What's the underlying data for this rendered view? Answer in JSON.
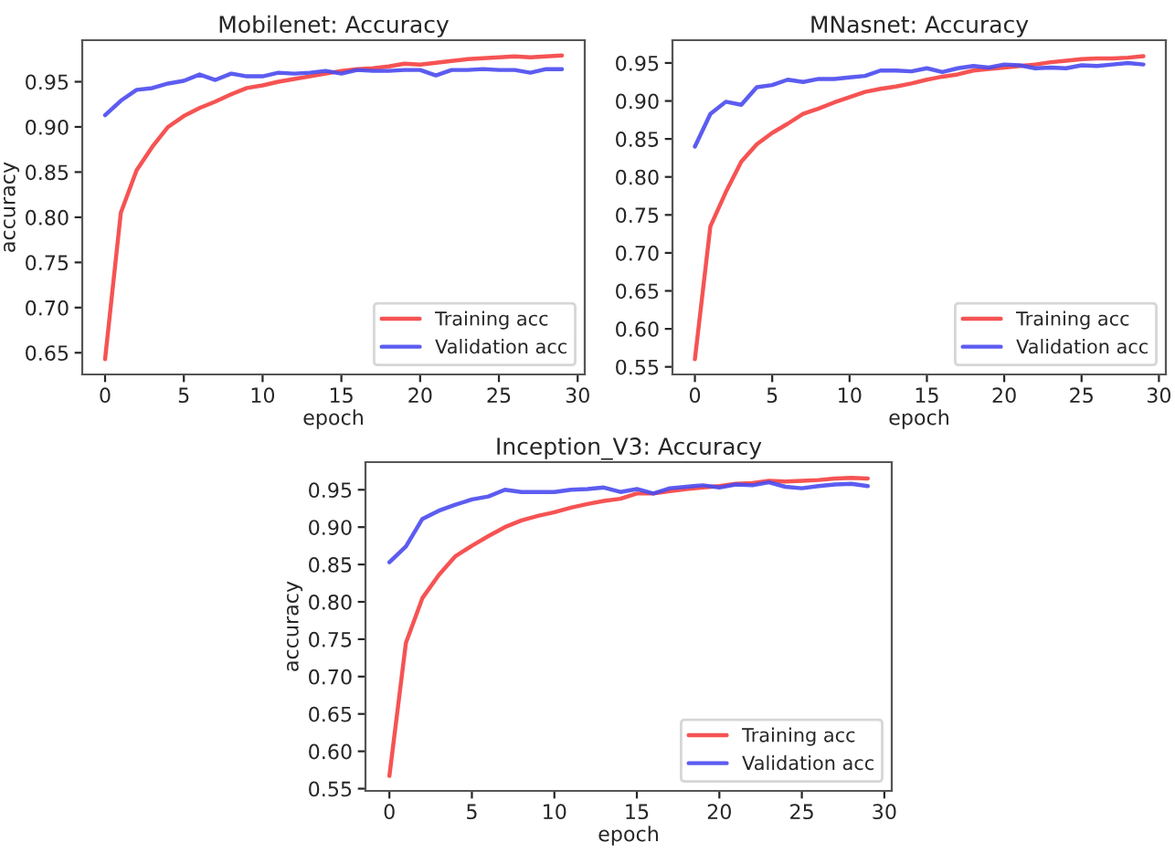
{
  "chart_data": [
    {
      "type": "line",
      "title": "Mobilenet: Accuracy",
      "xlabel": "epoch",
      "ylabel": "accuracy",
      "x": [
        0,
        1,
        2,
        3,
        4,
        5,
        6,
        7,
        8,
        9,
        10,
        11,
        12,
        13,
        14,
        15,
        16,
        17,
        18,
        19,
        20,
        21,
        22,
        23,
        24,
        25,
        26,
        27,
        28,
        29
      ],
      "xlim": [
        -1.45,
        30.45
      ],
      "xticks": [
        0,
        5,
        10,
        15,
        20,
        25,
        30
      ],
      "ylim": [
        0.626,
        0.996
      ],
      "yticks": [
        {
          "value": 0.65,
          "label": "0.65"
        },
        {
          "value": 0.7,
          "label": "0.70"
        },
        {
          "value": 0.75,
          "label": "0.75"
        },
        {
          "value": 0.8,
          "label": "0.80"
        },
        {
          "value": 0.85,
          "label": "0.85"
        },
        {
          "value": 0.9,
          "label": "0.90"
        },
        {
          "value": 0.95,
          "label": "0.95"
        }
      ],
      "legend": "bottom right",
      "grid": false,
      "series": [
        {
          "name": "Training acc",
          "color": "#f54040",
          "values": [
            0.643,
            0.805,
            0.852,
            0.878,
            0.9,
            0.912,
            0.921,
            0.928,
            0.936,
            0.943,
            0.946,
            0.95,
            0.953,
            0.956,
            0.959,
            0.962,
            0.964,
            0.965,
            0.967,
            0.97,
            0.969,
            0.971,
            0.973,
            0.975,
            0.976,
            0.977,
            0.978,
            0.977,
            0.978,
            0.979
          ]
        },
        {
          "name": "Validation acc",
          "color": "#4a4af0",
          "values": [
            0.913,
            0.929,
            0.941,
            0.943,
            0.948,
            0.951,
            0.958,
            0.952,
            0.959,
            0.956,
            0.956,
            0.96,
            0.959,
            0.96,
            0.962,
            0.959,
            0.963,
            0.962,
            0.962,
            0.963,
            0.963,
            0.957,
            0.963,
            0.963,
            0.964,
            0.963,
            0.963,
            0.96,
            0.964,
            0.964
          ]
        }
      ]
    },
    {
      "type": "line",
      "title": "MNasnet: Accuracy",
      "xlabel": "epoch",
      "x": [
        0,
        1,
        2,
        3,
        4,
        5,
        6,
        7,
        8,
        9,
        10,
        11,
        12,
        13,
        14,
        15,
        16,
        17,
        18,
        19,
        20,
        21,
        22,
        23,
        24,
        25,
        26,
        27,
        28,
        29
      ],
      "xlim": [
        -1.45,
        30.45
      ],
      "xticks": [
        0,
        5,
        10,
        15,
        20,
        25,
        30
      ],
      "ylim": [
        0.54,
        0.98
      ],
      "yticks": [
        {
          "value": 0.55,
          "label": "0.55"
        },
        {
          "value": 0.6,
          "label": "0.60"
        },
        {
          "value": 0.65,
          "label": "0.65"
        },
        {
          "value": 0.7,
          "label": "0.70"
        },
        {
          "value": 0.75,
          "label": "0.75"
        },
        {
          "value": 0.8,
          "label": "0.80"
        },
        {
          "value": 0.85,
          "label": "0.85"
        },
        {
          "value": 0.9,
          "label": "0.90"
        },
        {
          "value": 0.95,
          "label": "0.95"
        }
      ],
      "legend": "bottom right",
      "grid": false,
      "series": [
        {
          "name": "Training acc",
          "color": "#f54040",
          "values": [
            0.56,
            0.735,
            0.78,
            0.82,
            0.843,
            0.858,
            0.87,
            0.883,
            0.89,
            0.898,
            0.905,
            0.912,
            0.916,
            0.919,
            0.923,
            0.928,
            0.932,
            0.935,
            0.94,
            0.942,
            0.944,
            0.946,
            0.948,
            0.951,
            0.953,
            0.955,
            0.956,
            0.956,
            0.957,
            0.959
          ]
        },
        {
          "name": "Validation acc",
          "color": "#4a4af0",
          "values": [
            0.84,
            0.883,
            0.899,
            0.895,
            0.918,
            0.921,
            0.928,
            0.925,
            0.929,
            0.929,
            0.931,
            0.933,
            0.94,
            0.94,
            0.939,
            0.943,
            0.938,
            0.943,
            0.946,
            0.944,
            0.948,
            0.947,
            0.943,
            0.944,
            0.943,
            0.947,
            0.946,
            0.948,
            0.95,
            0.948
          ]
        }
      ]
    },
    {
      "type": "line",
      "title": "Inception_V3: Accuracy",
      "xlabel": "epoch",
      "ylabel": "accuracy",
      "x": [
        0,
        1,
        2,
        3,
        4,
        5,
        6,
        7,
        8,
        9,
        10,
        11,
        12,
        13,
        14,
        15,
        16,
        17,
        18,
        19,
        20,
        21,
        22,
        23,
        24,
        25,
        26,
        27,
        28,
        29
      ],
      "xlim": [
        -1.45,
        30.45
      ],
      "xticks": [
        0,
        5,
        10,
        15,
        20,
        25,
        30
      ],
      "ylim": [
        0.547,
        0.987
      ],
      "yticks": [
        {
          "value": 0.55,
          "label": "0.55"
        },
        {
          "value": 0.6,
          "label": "0.60"
        },
        {
          "value": 0.65,
          "label": "0.65"
        },
        {
          "value": 0.7,
          "label": "0.70"
        },
        {
          "value": 0.75,
          "label": "0.75"
        },
        {
          "value": 0.8,
          "label": "0.80"
        },
        {
          "value": 0.85,
          "label": "0.85"
        },
        {
          "value": 0.9,
          "label": "0.90"
        },
        {
          "value": 0.95,
          "label": "0.95"
        }
      ],
      "legend": "bottom right",
      "grid": false,
      "series": [
        {
          "name": "Training acc",
          "color": "#f54040",
          "values": [
            0.567,
            0.745,
            0.805,
            0.836,
            0.861,
            0.875,
            0.888,
            0.9,
            0.909,
            0.915,
            0.92,
            0.926,
            0.931,
            0.935,
            0.938,
            0.945,
            0.945,
            0.948,
            0.951,
            0.953,
            0.955,
            0.958,
            0.959,
            0.962,
            0.961,
            0.962,
            0.963,
            0.965,
            0.966,
            0.965
          ]
        },
        {
          "name": "Validation acc",
          "color": "#4a4af0",
          "values": [
            0.853,
            0.874,
            0.911,
            0.922,
            0.93,
            0.937,
            0.941,
            0.95,
            0.947,
            0.947,
            0.947,
            0.95,
            0.951,
            0.953,
            0.947,
            0.951,
            0.945,
            0.952,
            0.954,
            0.956,
            0.953,
            0.957,
            0.956,
            0.96,
            0.954,
            0.952,
            0.955,
            0.957,
            0.958,
            0.955
          ]
        }
      ]
    }
  ]
}
